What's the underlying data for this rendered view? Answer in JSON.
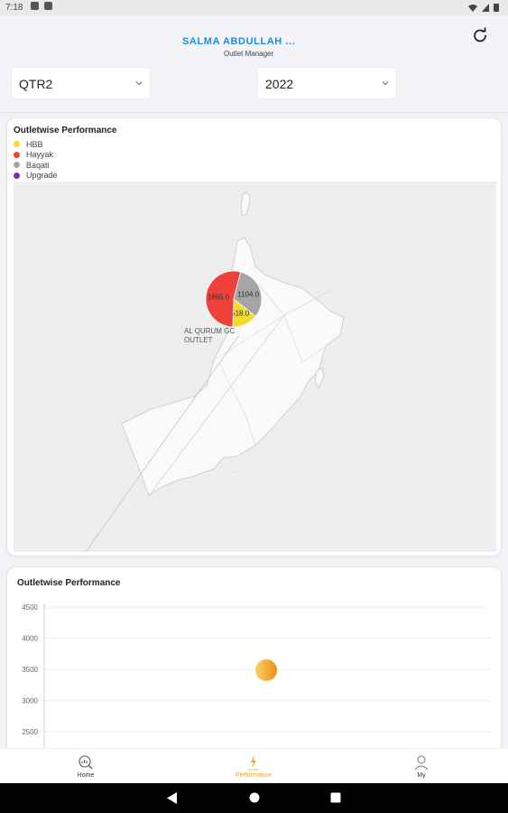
{
  "status_bar": {
    "time": "7:18"
  },
  "header": {
    "user_name": "SALMA ABDULLAH ...",
    "user_role": "Outlet Manager",
    "refresh_icon": "refresh-icon"
  },
  "filters": {
    "quarter": {
      "value": "QTR2"
    },
    "year": {
      "value": "2022"
    }
  },
  "map_card": {
    "title": "Outletwise Performance",
    "legend": [
      {
        "label": "HBB",
        "color": "#f5dc2b"
      },
      {
        "label": "Hayyak",
        "color": "#ee4137"
      },
      {
        "label": "Baqati",
        "color": "#a5a5a5"
      },
      {
        "label": "Upgrade",
        "color": "#8e24aa"
      }
    ],
    "pie": {
      "slices": [
        {
          "name": "HBB",
          "value": 518.0,
          "label": "518.0",
          "color": "#f5dc2b"
        },
        {
          "name": "Hayyak",
          "value": 1865.0,
          "label": "1865.0",
          "color": "#ee4137"
        },
        {
          "name": "Baqati",
          "value": 1104.0,
          "label": "1104.0",
          "color": "#a5a5a5"
        }
      ],
      "outlet_label_line1": "AL QURUM GC",
      "outlet_label_line2": "OUTLET"
    }
  },
  "chart_card": {
    "title": "Outletwise Performance",
    "chart_data": {
      "type": "scatter",
      "title": "Outletwise Performance",
      "xlabel": "",
      "ylabel": "",
      "ylim": [
        2500,
        4500
      ],
      "y_ticks": [
        "4500",
        "4000",
        "3500",
        "3000",
        "2500"
      ],
      "y_tick_values": [
        4500,
        4000,
        3500,
        3000,
        2500
      ],
      "points": [
        {
          "y": 3487
        }
      ],
      "grid": true
    }
  },
  "bottom_nav": {
    "items": [
      {
        "label": "Home",
        "icon": "home-chart-icon"
      },
      {
        "label": "Performance",
        "icon": "performance-icon"
      },
      {
        "label": "My",
        "icon": "person-icon"
      }
    ],
    "active_color": "#f2a31b"
  }
}
